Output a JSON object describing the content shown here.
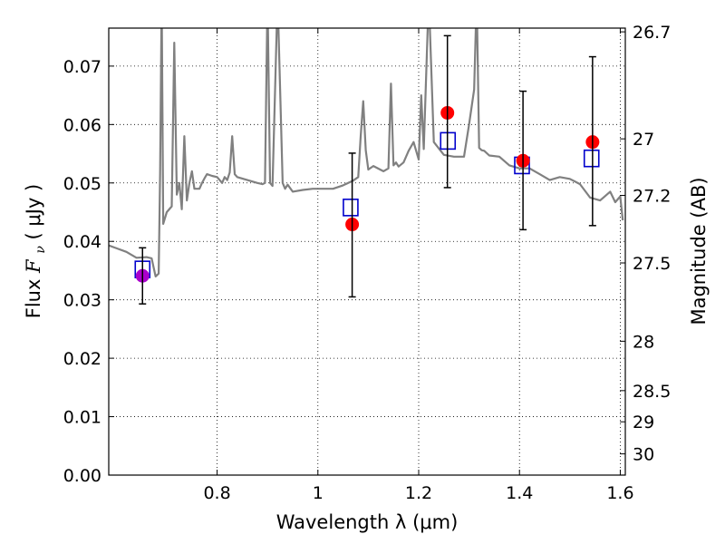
{
  "chart_data": {
    "type": "scatter",
    "xlabel": "Wavelength  λ (μm)",
    "ylabel": "Flux  F_ν  ( μJy )",
    "y2label": "Magnitude (AB)",
    "xlim": [
      0.585,
      1.61
    ],
    "ylim": [
      0.0,
      0.0765
    ],
    "grid": true,
    "x_ticks": [
      {
        "value": 0.8,
        "label": "0.8"
      },
      {
        "value": 1.0,
        "label": "1"
      },
      {
        "value": 1.2,
        "label": "1.2"
      },
      {
        "value": 1.4,
        "label": "1.4"
      },
      {
        "value": 1.6,
        "label": "1.6"
      }
    ],
    "y_ticks": [
      {
        "value": 0.0,
        "label": "0.00"
      },
      {
        "value": 0.01,
        "label": "0.01"
      },
      {
        "value": 0.02,
        "label": "0.02"
      },
      {
        "value": 0.03,
        "label": "0.03"
      },
      {
        "value": 0.04,
        "label": "0.04"
      },
      {
        "value": 0.05,
        "label": "0.05"
      },
      {
        "value": 0.06,
        "label": "0.06"
      },
      {
        "value": 0.07,
        "label": "0.07"
      }
    ],
    "y2_ticks": [
      {
        "value": 26.7,
        "label": "26.7"
      },
      {
        "value": 27.0,
        "label": "27"
      },
      {
        "value": 27.2,
        "label": "27.2"
      },
      {
        "value": 27.5,
        "label": "27.5"
      },
      {
        "value": 28.0,
        "label": "28"
      },
      {
        "value": 28.5,
        "label": "28.5"
      },
      {
        "value": 29.0,
        "label": "29"
      },
      {
        "value": 30.0,
        "label": "30"
      }
    ],
    "series": [
      {
        "kind": "model-spectrum",
        "style": "line",
        "color": "#808080",
        "x": [
          0.585,
          0.62,
          0.64,
          0.66,
          0.67,
          0.678,
          0.684,
          0.687,
          0.69,
          0.693,
          0.7,
          0.71,
          0.715,
          0.72,
          0.725,
          0.73,
          0.735,
          0.74,
          0.745,
          0.75,
          0.755,
          0.76,
          0.765,
          0.77,
          0.775,
          0.78,
          0.79,
          0.8,
          0.81,
          0.815,
          0.82,
          0.825,
          0.83,
          0.835,
          0.84,
          0.86,
          0.88,
          0.89,
          0.895,
          0.9,
          0.905,
          0.91,
          0.92,
          0.93,
          0.935,
          0.94,
          0.95,
          0.97,
          0.99,
          1.01,
          1.03,
          1.05,
          1.07,
          1.08,
          1.085,
          1.09,
          1.095,
          1.1,
          1.11,
          1.13,
          1.14,
          1.145,
          1.15,
          1.155,
          1.16,
          1.17,
          1.18,
          1.19,
          1.2,
          1.205,
          1.21,
          1.22,
          1.23,
          1.25,
          1.27,
          1.29,
          1.3,
          1.31,
          1.315,
          1.32,
          1.325,
          1.33,
          1.34,
          1.36,
          1.38,
          1.4,
          1.42,
          1.44,
          1.46,
          1.48,
          1.5,
          1.52,
          1.54,
          1.56,
          1.58,
          1.59,
          1.6,
          1.605
        ],
        "y": [
          0.0393,
          0.0382,
          0.0372,
          0.0373,
          0.0371,
          0.034,
          0.0345,
          0.052,
          0.082,
          0.043,
          0.045,
          0.046,
          0.074,
          0.048,
          0.05,
          0.0455,
          0.058,
          0.047,
          0.05,
          0.052,
          0.049,
          0.049,
          0.049,
          0.05,
          0.0508,
          0.0515,
          0.0512,
          0.051,
          0.05,
          0.051,
          0.0505,
          0.0518,
          0.058,
          0.0515,
          0.051,
          0.0505,
          0.05,
          0.0498,
          0.05,
          0.082,
          0.05,
          0.0495,
          0.082,
          0.05,
          0.049,
          0.0497,
          0.0485,
          0.0488,
          0.049,
          0.049,
          0.049,
          0.0496,
          0.0504,
          0.051,
          0.058,
          0.064,
          0.0556,
          0.0523,
          0.0529,
          0.052,
          0.0525,
          0.067,
          0.053,
          0.0535,
          0.0528,
          0.0535,
          0.0555,
          0.057,
          0.054,
          0.065,
          0.0558,
          0.082,
          0.057,
          0.0548,
          0.0545,
          0.0545,
          0.06,
          0.066,
          0.082,
          0.056,
          0.0556,
          0.0555,
          0.0547,
          0.0545,
          0.053,
          0.0525,
          0.0525,
          0.0515,
          0.0505,
          0.051,
          0.0507,
          0.0498,
          0.0475,
          0.047,
          0.0485,
          0.0467,
          0.0477,
          0.0436
        ]
      },
      {
        "kind": "model-photometry",
        "marker": "open-square",
        "color": "#0000cc",
        "x": [
          0.652,
          1.065,
          1.258,
          1.405,
          1.543
        ],
        "y": [
          0.0352,
          0.0458,
          0.0572,
          0.053,
          0.0542
        ]
      },
      {
        "kind": "observed-photometry",
        "marker": "filled-circle",
        "x": [
          0.652,
          1.068,
          1.257,
          1.407,
          1.545
        ],
        "y": [
          0.0341,
          0.0429,
          0.062,
          0.0538,
          0.057
        ],
        "yerr_low": [
          0.0293,
          0.0305,
          0.0492,
          0.042,
          0.0427
        ],
        "yerr_high": [
          0.0389,
          0.0551,
          0.0752,
          0.0657,
          0.0716
        ],
        "colors": [
          "#aa00cc",
          "#ff0000",
          "#ff0000",
          "#ff0000",
          "#ff0000"
        ]
      }
    ]
  }
}
